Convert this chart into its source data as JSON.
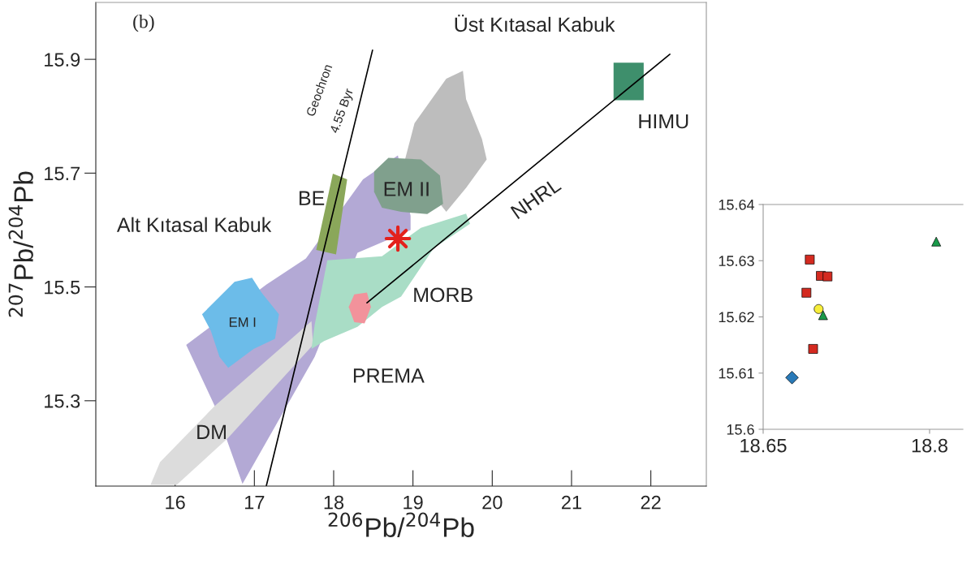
{
  "chart_data": [
    {
      "type": "scatter",
      "xlabel": "$^{206}$Pb/$^{204}$Pb",
      "ylabel": "$^{207}$Pb/$^{204}$Pb",
      "xlim": [
        15,
        22.7
      ],
      "ylim": [
        15.15,
        16.0
      ],
      "xticks": [
        16,
        17,
        18,
        19,
        20,
        21,
        22
      ],
      "yticks": [
        15.3,
        15.5,
        15.7,
        15.9
      ],
      "grid": false,
      "legend": false,
      "series": [
        {
          "type": "area",
          "color": "#b3a9d5",
          "x": [
            16.14,
            17.15,
            17.65,
            18.37,
            18.81,
            18.97,
            18.97,
            18.3,
            17.76,
            16.85,
            16.5
          ],
          "values": [
            15.398,
            15.504,
            15.55,
            15.689,
            15.731,
            15.625,
            15.6,
            15.56,
            15.377,
            15.154,
            15.291
          ]
        },
        {
          "type": "area",
          "color": "#dcdcdc",
          "x": [
            15.69,
            15.81,
            16.5,
            17.72,
            17.74,
            16.67,
            16.02
          ],
          "values": [
            15.152,
            15.192,
            15.291,
            15.44,
            15.398,
            15.235,
            15.152
          ]
        },
        {
          "type": "area",
          "color": "#a9ddc6",
          "x": [
            17.72,
            17.76,
            17.92,
            18.61,
            19.1,
            19.67,
            19.72,
            19.26,
            18.85,
            18.61,
            18.3,
            17.88
          ],
          "values": [
            15.391,
            15.433,
            15.547,
            15.554,
            15.604,
            15.629,
            15.611,
            15.568,
            15.483,
            15.465,
            15.43,
            15.405
          ]
        },
        {
          "type": "area",
          "color": "#bdbdbd",
          "x": [
            18.9,
            19.02,
            19.42,
            19.63,
            19.67,
            19.87,
            19.93,
            19.67,
            19.42
          ],
          "values": [
            15.724,
            15.788,
            15.866,
            15.88,
            15.83,
            15.76,
            15.724,
            15.674,
            15.632
          ]
        },
        {
          "type": "area",
          "color": "#80a08d",
          "x": [
            18.51,
            18.69,
            19.1,
            19.34,
            19.38,
            19.18,
            18.85,
            18.61,
            18.51
          ],
          "values": [
            15.703,
            15.727,
            15.724,
            15.696,
            15.646,
            15.628,
            15.632,
            15.639,
            15.667
          ]
        },
        {
          "type": "area",
          "color": "#6cbce9",
          "x": [
            16.34,
            16.75,
            16.97,
            17.09,
            17.31,
            17.26,
            16.99,
            16.67,
            16.56,
            16.45
          ],
          "values": [
            15.452,
            15.509,
            15.516,
            15.49,
            15.452,
            15.409,
            15.391,
            15.358,
            15.377,
            15.423
          ]
        },
        {
          "type": "area",
          "color": "#8aa75a",
          "x": [
            17.99,
            18.17,
            18.03,
            17.78
          ],
          "values": [
            15.699,
            15.689,
            15.557,
            15.565
          ]
        },
        {
          "type": "area",
          "color": "#f2929b",
          "x": [
            18.26,
            18.42,
            18.47,
            18.39,
            18.26,
            18.19
          ],
          "values": [
            15.487,
            15.49,
            15.465,
            15.436,
            15.438,
            15.465
          ]
        },
        {
          "type": "line",
          "color": "#000000",
          "x": [
            17.15,
            18.49
          ],
          "values": [
            15.15,
            15.916
          ]
        },
        {
          "type": "line",
          "color": "#000000",
          "x": [
            18.42,
            22.24
          ],
          "values": [
            15.472,
            15.909
          ]
        },
        {
          "type": "area",
          "color": "#3e8f6c",
          "x": [
            21.53,
            21.91,
            21.91,
            21.53
          ],
          "values": [
            15.894,
            15.894,
            15.828,
            15.828
          ]
        },
        {
          "type": "scatter",
          "color": "#e3211c",
          "marker": "star",
          "x": [
            18.81
          ],
          "values": [
            15.585
          ]
        }
      ],
      "annotations": [
        "(b)",
        "Geochron",
        "4.55 Byr",
        "Üst Kıtasal Kabuk",
        "HIMU",
        "BE",
        "EM II",
        "NHRL",
        "Alt Kıtasal Kabuk",
        "EM I",
        "MORB",
        "PREMA",
        "DM"
      ]
    },
    {
      "type": "scatter",
      "xlim": [
        18.65,
        18.83
      ],
      "ylim": [
        15.6,
        15.64
      ],
      "xticks": [
        18.65,
        18.8
      ],
      "yticks": [
        15.6,
        15.61,
        15.62,
        15.63,
        15.64
      ],
      "grid": false,
      "legend": false,
      "series": [
        {
          "color": "#d42a20",
          "marker": "square",
          "x": [
            18.692,
            18.702,
            18.708,
            18.689,
            18.695
          ],
          "values": [
            15.6302,
            15.6273,
            15.6272,
            15.6243,
            15.6143
          ]
        },
        {
          "color": "#f7ee3a",
          "marker": "circle",
          "x": [
            18.7
          ],
          "values": [
            15.6214
          ]
        },
        {
          "color": "#1a9a4a",
          "marker": "triangle",
          "x": [
            18.704,
            18.806
          ],
          "values": [
            15.6203,
            15.6334
          ]
        },
        {
          "color": "#2a7ab8",
          "marker": "diamond",
          "x": [
            18.676
          ],
          "values": [
            15.6092
          ]
        }
      ]
    }
  ]
}
